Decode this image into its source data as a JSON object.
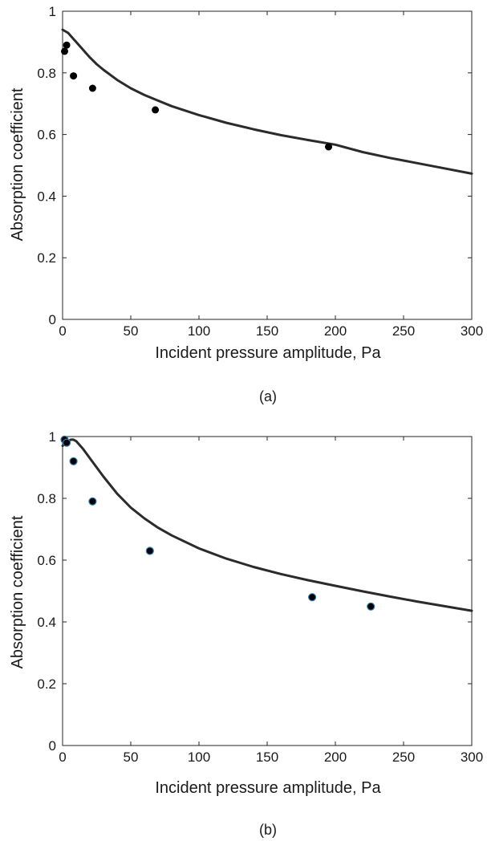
{
  "chart_data": [
    {
      "type": "line",
      "caption": "(a)",
      "xlabel": "Incident pressure amplitude, Pa",
      "ylabel": "Absorption coefficient",
      "xlim": [
        0,
        300
      ],
      "ylim": [
        0,
        1
      ],
      "x_ticks": [
        0,
        50,
        100,
        150,
        200,
        250,
        300
      ],
      "y_ticks": [
        0,
        0.2,
        0.4,
        0.6,
        0.8,
        1
      ],
      "y_tick_labels": [
        "0",
        "0.2",
        "0.4",
        "0.6",
        "0.8",
        "1"
      ],
      "grid": false,
      "series": [
        {
          "kind": "line",
          "color": "#2b2b2b",
          "x": [
            0,
            2,
            4,
            6,
            8,
            10,
            15,
            20,
            25,
            30,
            40,
            50,
            60,
            70,
            80,
            100,
            120,
            140,
            160,
            180,
            200,
            220,
            240,
            260,
            280,
            300
          ],
          "y": [
            0.94,
            0.935,
            0.93,
            0.92,
            0.91,
            0.9,
            0.875,
            0.85,
            0.828,
            0.81,
            0.777,
            0.75,
            0.728,
            0.71,
            0.692,
            0.663,
            0.638,
            0.617,
            0.598,
            0.582,
            0.567,
            0.543,
            0.524,
            0.507,
            0.49,
            0.473
          ]
        },
        {
          "kind": "scatter",
          "color": "#000000",
          "x": [
            1.5,
            3,
            8,
            22,
            68,
            195
          ],
          "y": [
            0.87,
            0.89,
            0.79,
            0.75,
            0.68,
            0.56
          ]
        }
      ]
    },
    {
      "type": "line",
      "caption": "(b)",
      "xlabel": "Incident pressure amplitude, Pa",
      "ylabel": "Absorption coefficient",
      "xlim": [
        0,
        300
      ],
      "ylim": [
        0,
        1
      ],
      "x_ticks": [
        0,
        50,
        100,
        150,
        200,
        250,
        300
      ],
      "y_ticks": [
        0,
        0.2,
        0.4,
        0.6,
        0.8,
        1
      ],
      "y_tick_labels": [
        "0",
        "0.2",
        "0.4",
        "0.6",
        "0.8",
        "1"
      ],
      "grid": false,
      "series": [
        {
          "kind": "line",
          "color": "#2b2b2b",
          "x": [
            0,
            2,
            4,
            6,
            8,
            10,
            15,
            20,
            25,
            30,
            40,
            50,
            60,
            70,
            80,
            100,
            120,
            140,
            160,
            180,
            200,
            220,
            240,
            260,
            280,
            300
          ],
          "y": [
            0.97,
            0.975,
            0.985,
            0.99,
            0.99,
            0.985,
            0.96,
            0.93,
            0.9,
            0.87,
            0.815,
            0.77,
            0.735,
            0.705,
            0.68,
            0.638,
            0.605,
            0.578,
            0.555,
            0.535,
            0.517,
            0.499,
            0.482,
            0.466,
            0.451,
            0.436
          ]
        },
        {
          "kind": "scatter",
          "color": "#000000",
          "edge_color": "#2e7db5",
          "x": [
            1.5,
            3,
            8,
            22,
            64,
            183,
            226
          ],
          "y": [
            0.99,
            0.98,
            0.92,
            0.79,
            0.63,
            0.48,
            0.45
          ]
        }
      ]
    }
  ]
}
